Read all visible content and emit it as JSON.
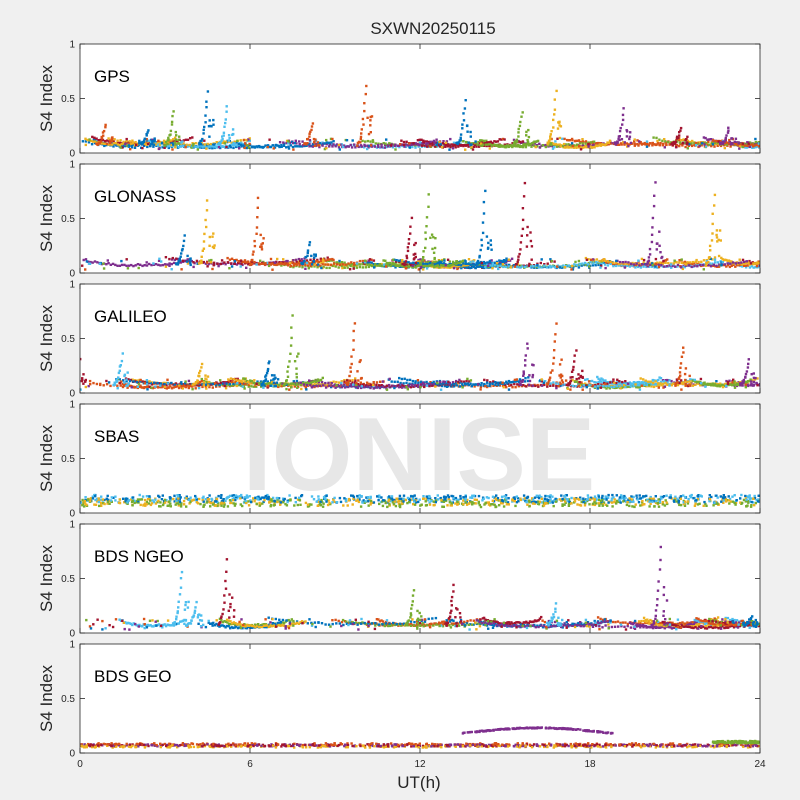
{
  "chart_data": {
    "type": "scatter",
    "title": "SXWN20250115",
    "xlabel": "UT(h)",
    "ylabel": "S4 Index",
    "xlim": [
      0,
      24
    ],
    "ylim": [
      0,
      1
    ],
    "x_ticks": [
      "0",
      "6",
      "12",
      "18",
      "24"
    ],
    "y_ticks": [
      "0",
      "0.5",
      "1"
    ],
    "watermark": "IONISE",
    "grid": false,
    "colors": [
      "#0072BD",
      "#D95319",
      "#EDB120",
      "#7E2F8E",
      "#77AC30",
      "#4DBEEE",
      "#A2142F"
    ],
    "panels": [
      {
        "system": "GPS",
        "peaks": [
          {
            "x": 0.9,
            "y": 0.25,
            "color": 1
          },
          {
            "x": 2.4,
            "y": 0.22,
            "color": 0
          },
          {
            "x": 3.3,
            "y": 0.38,
            "color": 4
          },
          {
            "x": 4.5,
            "y": 0.56,
            "color": 0
          },
          {
            "x": 5.2,
            "y": 0.42,
            "color": 5
          },
          {
            "x": 8.2,
            "y": 0.28,
            "color": 1
          },
          {
            "x": 10.1,
            "y": 0.62,
            "color": 1
          },
          {
            "x": 13.6,
            "y": 0.47,
            "color": 0
          },
          {
            "x": 15.6,
            "y": 0.38,
            "color": 4
          },
          {
            "x": 16.8,
            "y": 0.56,
            "color": 2
          },
          {
            "x": 19.2,
            "y": 0.4,
            "color": 3
          },
          {
            "x": 21.2,
            "y": 0.24,
            "color": 6
          },
          {
            "x": 22.9,
            "y": 0.22,
            "color": 3
          }
        ]
      },
      {
        "system": "GLONASS",
        "peaks": [
          {
            "x": 3.7,
            "y": 0.34,
            "color": 0
          },
          {
            "x": 4.5,
            "y": 0.68,
            "color": 2
          },
          {
            "x": 6.3,
            "y": 0.7,
            "color": 1
          },
          {
            "x": 8.1,
            "y": 0.28,
            "color": 0
          },
          {
            "x": 11.7,
            "y": 0.5,
            "color": 6
          },
          {
            "x": 12.3,
            "y": 0.72,
            "color": 4
          },
          {
            "x": 14.3,
            "y": 0.75,
            "color": 0
          },
          {
            "x": 15.7,
            "y": 0.83,
            "color": 6
          },
          {
            "x": 20.3,
            "y": 0.84,
            "color": 3
          },
          {
            "x": 22.4,
            "y": 0.73,
            "color": 2
          }
        ]
      },
      {
        "system": "GALILEO",
        "peaks": [
          {
            "x": 0.0,
            "y": 0.3,
            "color": 6
          },
          {
            "x": 1.5,
            "y": 0.35,
            "color": 5
          },
          {
            "x": 4.3,
            "y": 0.27,
            "color": 2
          },
          {
            "x": 6.7,
            "y": 0.3,
            "color": 0
          },
          {
            "x": 7.5,
            "y": 0.7,
            "color": 4
          },
          {
            "x": 9.7,
            "y": 0.65,
            "color": 1
          },
          {
            "x": 15.8,
            "y": 0.46,
            "color": 3
          },
          {
            "x": 16.8,
            "y": 0.63,
            "color": 1
          },
          {
            "x": 17.5,
            "y": 0.38,
            "color": 6
          },
          {
            "x": 21.3,
            "y": 0.43,
            "color": 1
          },
          {
            "x": 23.6,
            "y": 0.3,
            "color": 3
          }
        ]
      },
      {
        "system": "SBAS",
        "peaks": []
      },
      {
        "system": "BDS NGEO",
        "peaks": [
          {
            "x": 3.6,
            "y": 0.57,
            "color": 5
          },
          {
            "x": 4.1,
            "y": 0.28,
            "color": 5
          },
          {
            "x": 5.2,
            "y": 0.67,
            "color": 6
          },
          {
            "x": 11.8,
            "y": 0.4,
            "color": 4
          },
          {
            "x": 13.2,
            "y": 0.45,
            "color": 6
          },
          {
            "x": 16.8,
            "y": 0.26,
            "color": 5
          },
          {
            "x": 20.5,
            "y": 0.79,
            "color": 3
          },
          {
            "x": 23.7,
            "y": 0.14,
            "color": 0
          }
        ]
      },
      {
        "system": "BDS GEO",
        "peaks": []
      }
    ]
  }
}
